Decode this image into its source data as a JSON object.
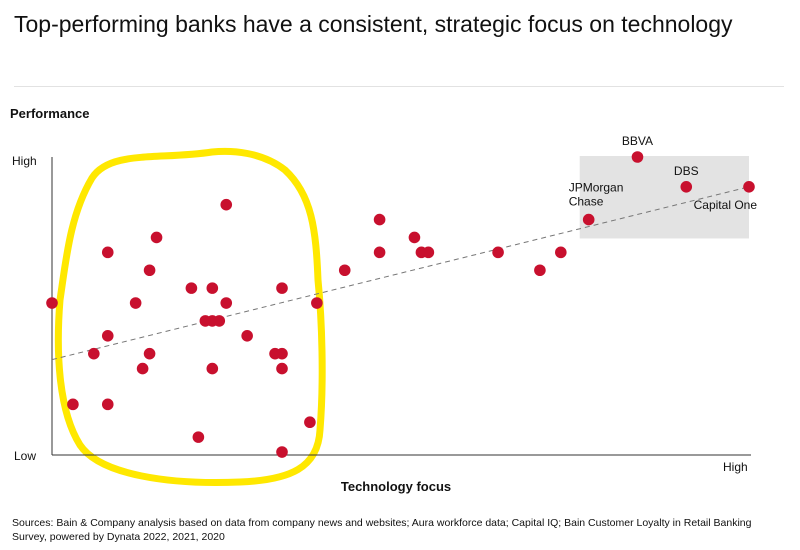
{
  "title": "Top-performing banks have a consistent, strategic focus on technology",
  "sources": "Sources: Bain & Company analysis based on data from company news and websites; Aura workforce data; Capital IQ; Bain Customer Loyalty in Retail Banking Survey, powered by Dynata 2022, 2021, 2020",
  "colors": {
    "point": "#c8102e",
    "highlight_box": "#e3e3e3",
    "circle_annotation": "#ffe800",
    "trendline": "#777777",
    "axis": "#333333"
  },
  "chart_data": {
    "type": "scatter",
    "xlabel": "Technology focus",
    "ylabel": "Performance",
    "x_tick_labels": {
      "low": "",
      "high": "High"
    },
    "y_tick_labels": {
      "low": "Low",
      "high": "High"
    },
    "xlim": [
      0,
      100
    ],
    "ylim": [
      0,
      100
    ],
    "grid": false,
    "legend": "none",
    "trendline": {
      "x": [
        0,
        100
      ],
      "y": [
        32,
        90
      ]
    },
    "highlight_region": {
      "x": [
        76,
        100
      ],
      "y": [
        73,
        100
      ]
    },
    "annotation_region": {
      "x": [
        0,
        39
      ],
      "y": [
        0,
        100
      ],
      "note": "hand-drawn yellow circle around the low-technology cluster"
    },
    "points": [
      {
        "x": 0,
        "y": 51,
        "label": ""
      },
      {
        "x": 3,
        "y": 17,
        "label": ""
      },
      {
        "x": 6,
        "y": 34,
        "label": ""
      },
      {
        "x": 8,
        "y": 68,
        "label": ""
      },
      {
        "x": 8,
        "y": 40,
        "label": ""
      },
      {
        "x": 8,
        "y": 17,
        "label": ""
      },
      {
        "x": 12,
        "y": 51,
        "label": ""
      },
      {
        "x": 13,
        "y": 29,
        "label": ""
      },
      {
        "x": 14,
        "y": 34,
        "label": ""
      },
      {
        "x": 14,
        "y": 62,
        "label": ""
      },
      {
        "x": 15,
        "y": 73,
        "label": ""
      },
      {
        "x": 20,
        "y": 56,
        "label": ""
      },
      {
        "x": 21,
        "y": 6,
        "label": ""
      },
      {
        "x": 22,
        "y": 45,
        "label": ""
      },
      {
        "x": 23,
        "y": 56,
        "label": ""
      },
      {
        "x": 23,
        "y": 45,
        "label": ""
      },
      {
        "x": 23,
        "y": 29,
        "label": ""
      },
      {
        "x": 24,
        "y": 45,
        "label": ""
      },
      {
        "x": 25,
        "y": 84,
        "label": ""
      },
      {
        "x": 25,
        "y": 51,
        "label": ""
      },
      {
        "x": 28,
        "y": 40,
        "label": ""
      },
      {
        "x": 32,
        "y": 34,
        "label": ""
      },
      {
        "x": 33,
        "y": 34,
        "label": ""
      },
      {
        "x": 33,
        "y": 29,
        "label": ""
      },
      {
        "x": 33,
        "y": 56,
        "label": ""
      },
      {
        "x": 33,
        "y": 1,
        "label": ""
      },
      {
        "x": 37,
        "y": 11,
        "label": ""
      },
      {
        "x": 38,
        "y": 51,
        "label": ""
      },
      {
        "x": 42,
        "y": 62,
        "label": ""
      },
      {
        "x": 47,
        "y": 68,
        "label": ""
      },
      {
        "x": 47,
        "y": 79,
        "label": ""
      },
      {
        "x": 52,
        "y": 73,
        "label": ""
      },
      {
        "x": 53,
        "y": 68,
        "label": ""
      },
      {
        "x": 54,
        "y": 68,
        "label": ""
      },
      {
        "x": 64,
        "y": 68,
        "label": ""
      },
      {
        "x": 70,
        "y": 62,
        "label": ""
      },
      {
        "x": 73,
        "y": 68,
        "label": ""
      },
      {
        "x": 77,
        "y": 79,
        "label": "JPMorgan Chase"
      },
      {
        "x": 84,
        "y": 100,
        "label": "BBVA"
      },
      {
        "x": 91,
        "y": 90,
        "label": "DBS"
      },
      {
        "x": 100,
        "y": 90,
        "label": "Capital One"
      }
    ]
  }
}
